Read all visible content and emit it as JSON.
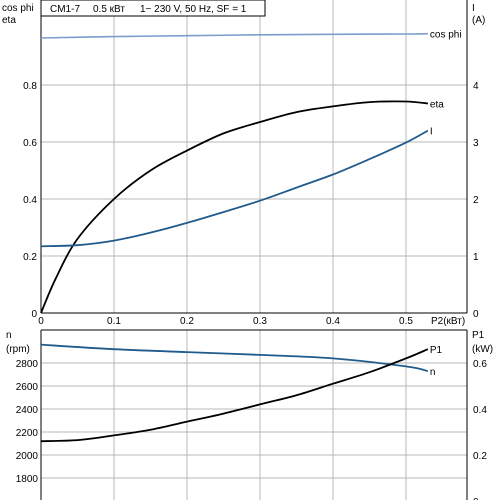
{
  "title": {
    "model": "CM1-7",
    "power": "0.5 кВт",
    "supply": "1~ 230 V, 50 Hz, SF = 1"
  },
  "colors": {
    "grid": "#b8b8b8",
    "black_curve": "#000000",
    "blue_curve": "#1f5b8c",
    "cosphi_curve": "#7c9ecb"
  },
  "chart_data": [
    {
      "type": "line",
      "panel": "top",
      "xlabel": "P2(кВт)",
      "ylabel_left": [
        "cos phi",
        "eta"
      ],
      "ylabel_right": [
        "I",
        "(A)"
      ],
      "xlim": [
        0,
        0.6
      ],
      "ylim_left": [
        0,
        1.0
      ],
      "ylim_right": [
        0,
        5
      ],
      "x_ticks": [
        0,
        0.1,
        0.2,
        0.3,
        0.4,
        0.5
      ],
      "x_tick_labels": [
        "0",
        "0.1",
        "0.2",
        "0.3",
        "0.4",
        "0.5"
      ],
      "y_left_ticks": [
        0,
        0.2,
        0.4,
        0.6,
        0.8
      ],
      "y_left_tick_labels": [
        "0",
        "0.2",
        "0.4",
        "0.6",
        "0.8"
      ],
      "y_right_ticks": [
        0,
        1,
        2,
        3,
        4
      ],
      "y_right_tick_labels": [
        "0",
        "1",
        "2",
        "3",
        "4"
      ],
      "grid": true,
      "series": [
        {
          "name": "cos phi",
          "axis": "left",
          "color": "#7c9ecb",
          "x": [
            0,
            0.1,
            0.2,
            0.3,
            0.4,
            0.5,
            0.53
          ],
          "y": [
            0.965,
            0.97,
            0.973,
            0.976,
            0.978,
            0.979,
            0.98
          ]
        },
        {
          "name": "eta",
          "axis": "left",
          "color": "#000000",
          "x": [
            0,
            0.02,
            0.05,
            0.1,
            0.15,
            0.2,
            0.25,
            0.3,
            0.35,
            0.4,
            0.45,
            0.5,
            0.53
          ],
          "y": [
            0,
            0.12,
            0.26,
            0.4,
            0.5,
            0.57,
            0.63,
            0.67,
            0.705,
            0.725,
            0.74,
            0.742,
            0.735
          ]
        },
        {
          "name": "I",
          "axis": "right",
          "color": "#1f5b8c",
          "x": [
            0,
            0.05,
            0.1,
            0.15,
            0.2,
            0.25,
            0.3,
            0.35,
            0.4,
            0.45,
            0.5,
            0.53
          ],
          "y": [
            1.17,
            1.19,
            1.27,
            1.41,
            1.58,
            1.77,
            1.97,
            2.2,
            2.43,
            2.7,
            2.99,
            3.2
          ]
        }
      ]
    },
    {
      "type": "line",
      "panel": "bottom",
      "xlim": [
        0,
        0.6
      ],
      "ylabel_left": [
        "n",
        "(rpm)"
      ],
      "ylabel_right": [
        "P1",
        "(kW)"
      ],
      "ylim_left": [
        1600,
        3000
      ],
      "ylim_right": [
        0,
        0.7
      ],
      "y_left_ticks": [
        1800,
        2000,
        2200,
        2400,
        2600,
        2800
      ],
      "y_left_tick_labels": [
        "1800",
        "2000",
        "2200",
        "2400",
        "2600",
        "2800"
      ],
      "y_right_ticks": [
        0,
        0.2,
        0.4,
        0.6
      ],
      "y_right_tick_labels": [
        "0",
        "0.2",
        "0.4",
        "0.6"
      ],
      "grid": true,
      "series": [
        {
          "name": "n",
          "axis": "left",
          "color": "#1f5b8c",
          "x": [
            0,
            0.1,
            0.2,
            0.3,
            0.4,
            0.5,
            0.53
          ],
          "y": [
            2960,
            2920,
            2895,
            2870,
            2840,
            2770,
            2730
          ]
        },
        {
          "name": "P1",
          "axis": "right",
          "color": "#000000",
          "x": [
            0,
            0.05,
            0.1,
            0.15,
            0.2,
            0.25,
            0.3,
            0.35,
            0.4,
            0.45,
            0.5,
            0.53
          ],
          "y": [
            0.26,
            0.265,
            0.285,
            0.31,
            0.345,
            0.38,
            0.42,
            0.46,
            0.51,
            0.56,
            0.62,
            0.66
          ]
        }
      ]
    }
  ]
}
